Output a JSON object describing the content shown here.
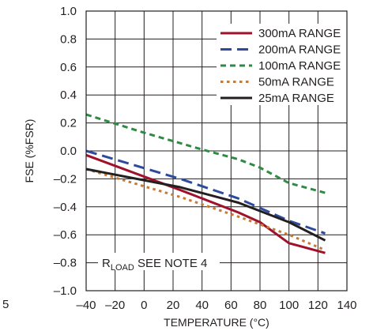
{
  "chart_data": {
    "type": "line",
    "xlabel": "TEMPERATURE (°C)",
    "ylabel": "FSE (%FSR)",
    "xlim": [
      -40,
      140
    ],
    "ylim": [
      -1.0,
      1.0
    ],
    "x_ticks": [
      -40,
      -20,
      0,
      20,
      40,
      60,
      80,
      100,
      120,
      140
    ],
    "x_tick_labels": [
      "–40",
      "–20",
      "0",
      "20",
      "40",
      "60",
      "80",
      "100",
      "120",
      "140"
    ],
    "y_ticks": [
      1.0,
      0.8,
      0.6,
      0.4,
      0.2,
      0.0,
      -0.2,
      -0.4,
      -0.6,
      -0.8,
      -1.0
    ],
    "y_tick_labels": [
      "1.0",
      "0.8",
      "0.6",
      "0.4",
      "0.2",
      "0.0",
      "–0.2",
      "–0.4",
      "–0.6",
      "–0.8",
      "–1.0"
    ],
    "grid": true,
    "legend_position": "top-right",
    "annotation": {
      "main": "R",
      "sub": "LOAD",
      "rest": " SEE NOTE 4"
    },
    "corner_text": "5",
    "series": [
      {
        "name": "300mA RANGE",
        "color": "#a0112b",
        "dash": "solid",
        "x": [
          -40,
          25,
          65,
          80,
          100,
          125
        ],
        "y": [
          -0.03,
          -0.28,
          -0.44,
          -0.51,
          -0.66,
          -0.73
        ]
      },
      {
        "name": "200mA RANGE",
        "color": "#2e4a9b",
        "dash": "long-dash",
        "x": [
          -40,
          25,
          65,
          100,
          125
        ],
        "y": [
          0.0,
          -0.2,
          -0.34,
          -0.5,
          -0.59
        ]
      },
      {
        "name": "100mA RANGE",
        "color": "#2f8a43",
        "dash": "short-dash",
        "x": [
          -40,
          0,
          40,
          65,
          80,
          100,
          125
        ],
        "y": [
          0.26,
          0.13,
          0.01,
          -0.06,
          -0.12,
          -0.23,
          -0.3
        ]
      },
      {
        "name": "50mA RANGE",
        "color": "#c77a34",
        "dash": "dot",
        "x": [
          -40,
          25,
          65,
          100,
          125
        ],
        "y": [
          -0.13,
          -0.33,
          -0.47,
          -0.6,
          -0.71
        ]
      },
      {
        "name": "25mA RANGE",
        "color": "#231f20",
        "dash": "solid",
        "x": [
          -40,
          25,
          65,
          100,
          125
        ],
        "y": [
          -0.13,
          -0.26,
          -0.37,
          -0.51,
          -0.64
        ]
      }
    ],
    "colors": {
      "axis": "#231f20",
      "grid": "#231f20",
      "background": "#ffffff"
    }
  }
}
